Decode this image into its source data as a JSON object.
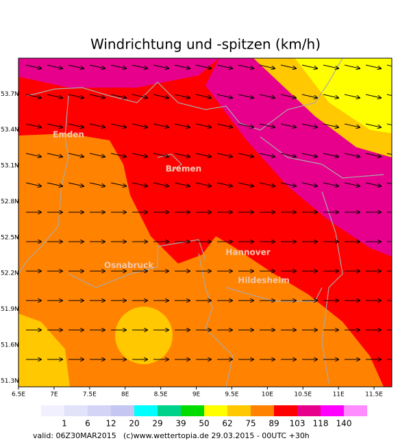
{
  "title": "Windrichtung und -spitzen (km/h)",
  "map": {
    "xlim": [
      6.5,
      11.75
    ],
    "ylim": [
      51.25,
      54.0
    ],
    "xticks": [
      {
        "value": 6.5,
        "label": "6.5E"
      },
      {
        "value": 7,
        "label": "7E"
      },
      {
        "value": 7.5,
        "label": "7.5E"
      },
      {
        "value": 8,
        "label": "8E"
      },
      {
        "value": 8.5,
        "label": "8.5E"
      },
      {
        "value": 9,
        "label": "9E"
      },
      {
        "value": 9.5,
        "label": "9.5E"
      },
      {
        "value": 10,
        "label": "10E"
      },
      {
        "value": 10.5,
        "label": "10.5E"
      },
      {
        "value": 11,
        "label": "11E"
      },
      {
        "value": 11.5,
        "label": "11.5E"
      }
    ],
    "yticks": [
      {
        "value": 53.7,
        "label": "53.7N"
      },
      {
        "value": 53.4,
        "label": "53.4N"
      },
      {
        "value": 53.1,
        "label": "53.1N"
      },
      {
        "value": 52.8,
        "label": "52.8N"
      },
      {
        "value": 52.5,
        "label": "52.5N"
      },
      {
        "value": 52.2,
        "label": "52.2N"
      },
      {
        "value": 51.9,
        "label": "51.9N"
      },
      {
        "value": 51.6,
        "label": "51.6N"
      },
      {
        "value": 51.3,
        "label": "51.3N"
      }
    ],
    "cities": [
      "Emden",
      "Bremen",
      "Hannover",
      "Osnabruck",
      "Hildesheim"
    ]
  },
  "legend": {
    "levels": [
      1,
      6,
      12,
      20,
      29,
      39,
      50,
      62,
      75,
      89,
      103,
      118,
      140
    ],
    "colors": [
      "#f0f0ff",
      "#e2e2fa",
      "#d4d4f6",
      "#c6c6f2",
      "#00ffff",
      "#00d28c",
      "#00dc00",
      "#ffff00",
      "#ffc800",
      "#ff8200",
      "#ff0000",
      "#e6008c",
      "#ff00ff",
      "#ff8cff"
    ]
  },
  "footer": {
    "valid": "valid: 06Z30MAR2015",
    "source": "(c)www.wettertopia.de 29.03.2015 -  00UTC +30h"
  }
}
